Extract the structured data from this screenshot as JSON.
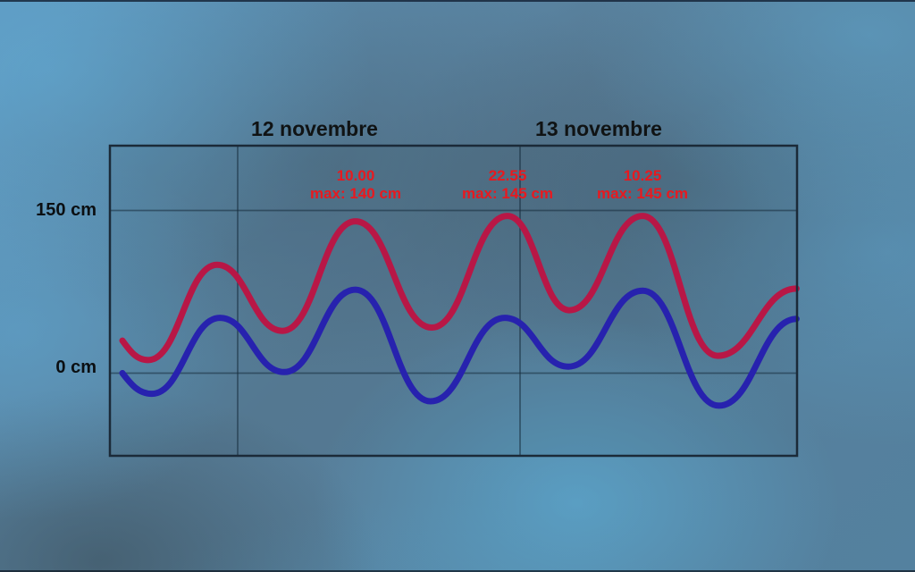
{
  "chart": {
    "day_labels": [
      "12 novembre",
      "13 novembre"
    ],
    "y_ticks": [
      {
        "label": "150 cm",
        "cm": 150
      },
      {
        "label": "0 cm",
        "cm": 0
      }
    ],
    "annotations": [
      {
        "time": "10.00",
        "max": "max: 140 cm",
        "hour": 10.0
      },
      {
        "time": "22.55",
        "max": "max: 145 cm",
        "hour": 22.92
      },
      {
        "time": "10.25",
        "max": "max: 145 cm",
        "hour": 34.42
      }
    ],
    "colors": {
      "red_curve": "#b81746",
      "blue_curve": "#2722ae",
      "annotation_text": "#e8191f",
      "grid_line": "rgba(22,44,60,0.55)",
      "plot_border": "#1b2a38",
      "plot_fill": "rgba(45,65,80,0.10)"
    }
  },
  "chart_data": {
    "type": "line",
    "title": "",
    "xlabel": "",
    "ylabel": "cm",
    "x_unit": "hours since 12 novembre 00:00",
    "xlim": [
      -10.9,
      47.6
    ],
    "ylim": [
      -76,
      209
    ],
    "grid": {
      "vertical_day_boundary_hours": [
        0,
        24
      ],
      "horizontal_cm": [
        150,
        0
      ]
    },
    "legend": "none",
    "series": [
      {
        "name": "red",
        "description": "upper tide curve (forecast sea level, cm)",
        "color": "#b81746",
        "points": [
          {
            "h": -9.8,
            "cm": 30
          },
          {
            "h": -7.6,
            "cm": 12
          },
          {
            "h": -1.75,
            "cm": 100
          },
          {
            "h": 3.8,
            "cm": 39
          },
          {
            "h": 10.0,
            "cm": 140
          },
          {
            "h": 16.5,
            "cm": 42
          },
          {
            "h": 22.92,
            "cm": 145
          },
          {
            "h": 28.2,
            "cm": 58
          },
          {
            "h": 34.42,
            "cm": 145
          },
          {
            "h": 40.8,
            "cm": 16
          },
          {
            "h": 47.5,
            "cm": 78
          }
        ]
      },
      {
        "name": "blue",
        "description": "lower tide curve (astronomical tide, cm)",
        "color": "#2722ae",
        "points": [
          {
            "h": -9.8,
            "cm": 0
          },
          {
            "h": -7.3,
            "cm": -19
          },
          {
            "h": -1.5,
            "cm": 51
          },
          {
            "h": 3.95,
            "cm": 1
          },
          {
            "h": 10.0,
            "cm": 77
          },
          {
            "h": 16.4,
            "cm": -26
          },
          {
            "h": 22.7,
            "cm": 51
          },
          {
            "h": 28.1,
            "cm": 6
          },
          {
            "h": 34.42,
            "cm": 76
          },
          {
            "h": 40.9,
            "cm": -30
          },
          {
            "h": 47.5,
            "cm": 50
          }
        ]
      }
    ]
  }
}
